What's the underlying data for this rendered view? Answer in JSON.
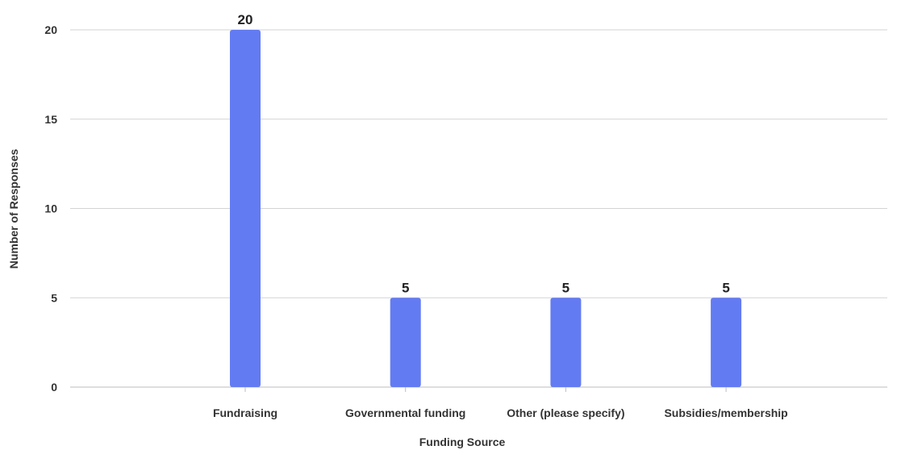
{
  "chart_data": {
    "type": "bar",
    "categories": [
      "Fundraising",
      "Governmental funding",
      "Other (please specify)",
      "Subsidies/membership"
    ],
    "values": [
      20,
      5,
      5,
      5
    ],
    "data_labels": [
      "20",
      "5",
      "5",
      "5"
    ],
    "title": "",
    "xlabel": "Funding Source",
    "ylabel": "Number of Responses",
    "ylim": [
      0,
      20
    ],
    "yticks": [
      0,
      5,
      10,
      15,
      20
    ],
    "ytick_labels": [
      "0",
      "5",
      "10",
      "15",
      "20"
    ],
    "grid": true,
    "legend": "none",
    "colors": {
      "bar": "#637bf2",
      "gridline": "#d3d3d3"
    }
  }
}
